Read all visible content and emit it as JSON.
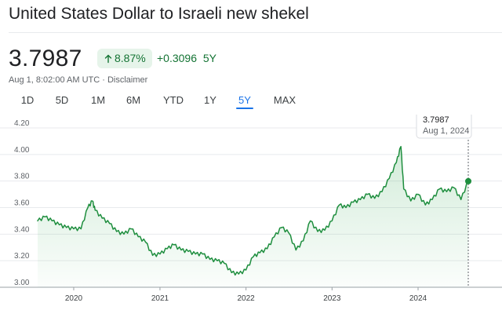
{
  "header": {
    "title": "United States Dollar to Israeli new shekel"
  },
  "quote": {
    "price": "3.7987",
    "percent_change": "8.87%",
    "abs_change": "+0.3096",
    "period": "5Y",
    "timestamp": "Aug 1, 8:02:00 AM UTC",
    "separator": "·",
    "disclaimer": "Disclaimer",
    "trend_icon": "arrow-up-icon",
    "positive_color": "#137333",
    "badge_bg": "#e6f4ea"
  },
  "tabs": [
    {
      "label": "1D",
      "active": false
    },
    {
      "label": "5D",
      "active": false
    },
    {
      "label": "1M",
      "active": false
    },
    {
      "label": "6M",
      "active": false
    },
    {
      "label": "YTD",
      "active": false
    },
    {
      "label": "1Y",
      "active": false
    },
    {
      "label": "5Y",
      "active": true
    },
    {
      "label": "MAX",
      "active": false
    }
  ],
  "tooltip": {
    "price": "3.7987",
    "date": "Aug 1, 2024"
  },
  "chart_data": {
    "type": "area",
    "title": "",
    "xlabel": "",
    "ylabel": "",
    "ylim": [
      3.0,
      4.2
    ],
    "xlim": [
      "2019-08-01",
      "2024-08-01"
    ],
    "yticks": [
      "4.20",
      "4.00",
      "3.80",
      "3.60",
      "3.40",
      "3.20",
      "3.00"
    ],
    "xticks": [
      "2020",
      "2021",
      "2022",
      "2023",
      "2024"
    ],
    "grid": "horizontal",
    "line_color": "#1e8e3e",
    "series": [
      {
        "x": [
          "2019-08-01",
          "2019-09-01",
          "2019-10-01",
          "2019-11-01",
          "2019-12-01",
          "2020-01-01",
          "2020-02-01",
          "2020-03-01",
          "2020-03-20",
          "2020-04-01",
          "2020-05-01",
          "2020-06-01",
          "2020-07-01",
          "2020-08-01",
          "2020-09-01",
          "2020-10-01",
          "2020-11-01",
          "2020-12-01",
          "2021-01-01",
          "2021-02-01",
          "2021-03-01",
          "2021-04-01",
          "2021-05-01",
          "2021-06-01",
          "2021-07-01",
          "2021-08-01",
          "2021-09-01",
          "2021-10-01",
          "2021-11-01",
          "2021-12-01",
          "2022-01-01",
          "2022-02-01",
          "2022-03-01",
          "2022-04-01",
          "2022-05-01",
          "2022-06-01",
          "2022-07-01",
          "2022-08-01",
          "2022-09-01",
          "2022-10-01",
          "2022-11-01",
          "2022-12-01",
          "2023-01-01",
          "2023-02-01",
          "2023-03-01",
          "2023-04-01",
          "2023-05-01",
          "2023-06-01",
          "2023-07-01",
          "2023-08-01",
          "2023-09-01",
          "2023-10-01",
          "2023-10-20",
          "2023-11-01",
          "2023-12-01",
          "2024-01-01",
          "2024-02-01",
          "2024-03-01",
          "2024-04-01",
          "2024-05-01",
          "2024-06-01",
          "2024-07-01",
          "2024-08-01"
        ],
        "values": [
          3.5,
          3.53,
          3.5,
          3.47,
          3.45,
          3.44,
          3.44,
          3.6,
          3.65,
          3.58,
          3.52,
          3.48,
          3.42,
          3.4,
          3.44,
          3.38,
          3.34,
          3.24,
          3.25,
          3.29,
          3.32,
          3.28,
          3.27,
          3.25,
          3.25,
          3.21,
          3.2,
          3.18,
          3.11,
          3.1,
          3.13,
          3.23,
          3.26,
          3.29,
          3.38,
          3.45,
          3.41,
          3.28,
          3.35,
          3.5,
          3.42,
          3.43,
          3.5,
          3.62,
          3.6,
          3.64,
          3.66,
          3.7,
          3.67,
          3.72,
          3.82,
          3.94,
          4.06,
          3.74,
          3.65,
          3.7,
          3.62,
          3.66,
          3.74,
          3.72,
          3.75,
          3.66,
          3.7987
        ]
      }
    ]
  }
}
